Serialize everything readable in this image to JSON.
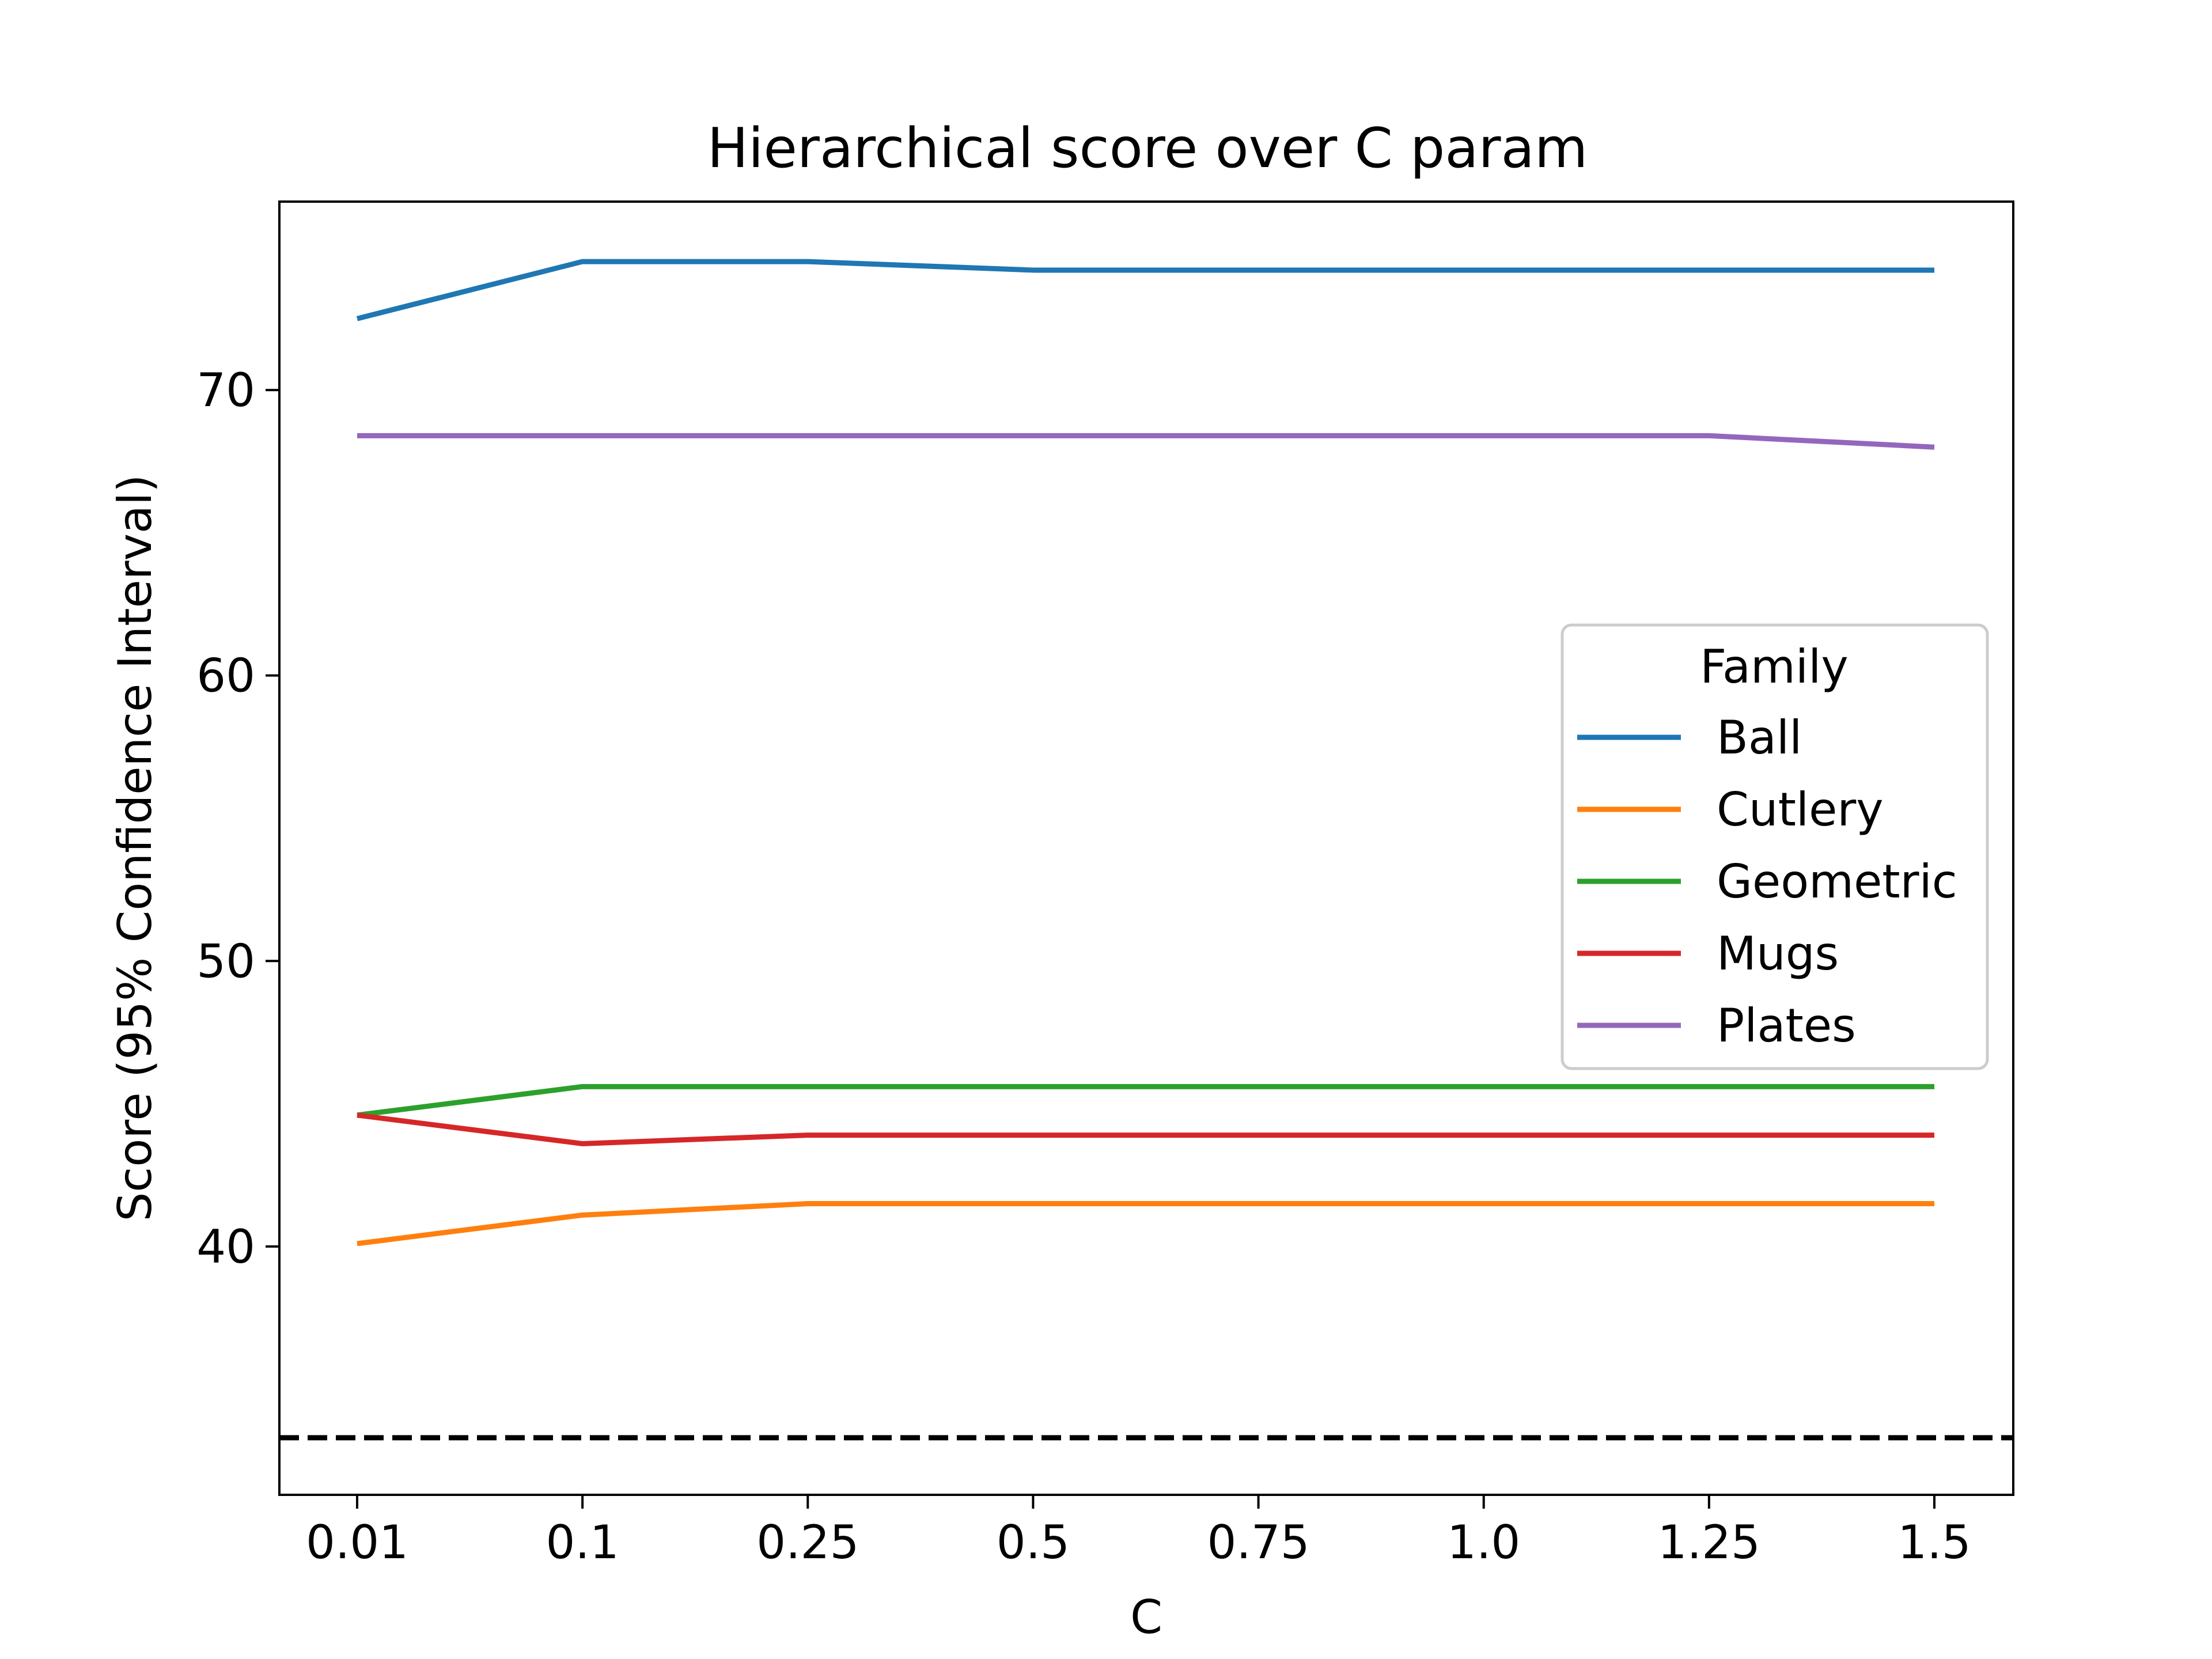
{
  "chart_data": {
    "type": "line",
    "title": "Hierarchical score over C param",
    "xlabel": "C",
    "ylabel": "Score (95% Confidence Interval)",
    "categories": [
      "0.01",
      "0.1",
      "0.25",
      "0.5",
      "0.75",
      "1.0",
      "1.25",
      "1.5"
    ],
    "y_ticks": [
      40,
      50,
      60,
      70
    ],
    "ylim": [
      31.3,
      76.6
    ],
    "grid": false,
    "legend": {
      "title": "Family",
      "placement": "center-right"
    },
    "series": [
      {
        "name": "Ball",
        "color": "#1f77b4",
        "values": [
          72.5,
          74.5,
          74.5,
          74.2,
          74.2,
          74.2,
          74.2,
          74.2
        ]
      },
      {
        "name": "Cutlery",
        "color": "#ff7f0e",
        "values": [
          40.1,
          41.1,
          41.5,
          41.5,
          41.5,
          41.5,
          41.5,
          41.5
        ]
      },
      {
        "name": "Geometric",
        "color": "#2ca02c",
        "values": [
          44.6,
          45.6,
          45.6,
          45.6,
          45.6,
          45.6,
          45.6,
          45.6
        ]
      },
      {
        "name": "Mugs",
        "color": "#d62728",
        "values": [
          44.6,
          43.6,
          43.9,
          43.9,
          43.9,
          43.9,
          43.9,
          43.9
        ]
      },
      {
        "name": "Plates",
        "color": "#9467bd",
        "values": [
          68.4,
          68.4,
          68.4,
          68.4,
          68.4,
          68.4,
          68.4,
          68.0
        ]
      }
    ],
    "reference_line": {
      "y": 33.3,
      "color": "#000000",
      "style": "dashed"
    }
  }
}
